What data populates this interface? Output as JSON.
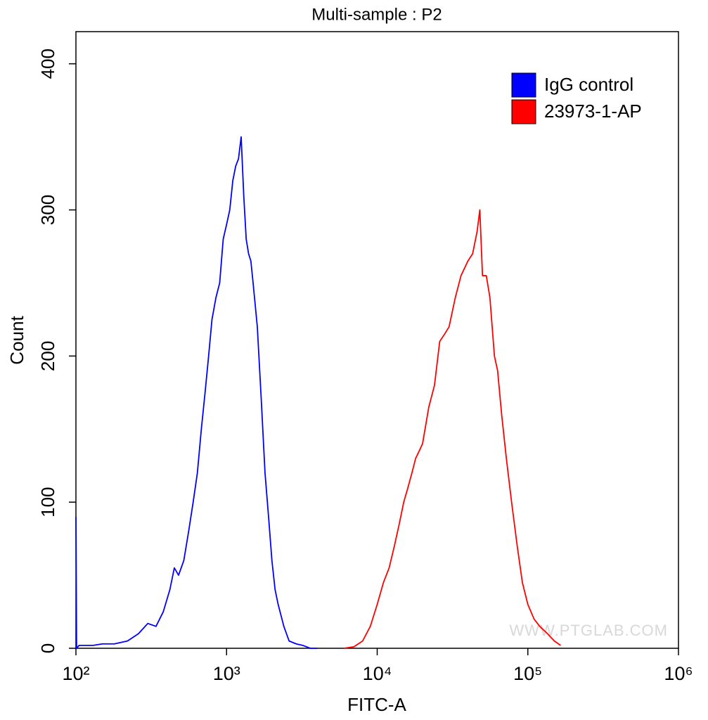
{
  "chart_data": {
    "type": "histogram-line",
    "title": "Multi-sample : P2",
    "x_label": "FITC-A",
    "y_label": "Count",
    "x_log": true,
    "xlim": [
      100,
      1000000
    ],
    "xticks": [
      {
        "value": 100,
        "label": "10²"
      },
      {
        "value": 1000,
        "label": "10³"
      },
      {
        "value": 10000,
        "label": "10⁴"
      },
      {
        "value": 100000,
        "label": "10⁵"
      },
      {
        "value": 1000000,
        "label": "10⁶"
      }
    ],
    "ylim": [
      0,
      422
    ],
    "yticks": [
      0,
      100,
      200,
      300,
      400
    ],
    "legend_position": "upper right",
    "watermark": "WWW.PTGLAB.COM",
    "series": [
      {
        "name": "IgG control",
        "color": "#0000ff",
        "x": [
          100,
          101,
          105,
          130,
          150,
          180,
          220,
          260,
          300,
          340,
          380,
          420,
          450,
          480,
          520,
          560,
          600,
          640,
          680,
          720,
          760,
          800,
          850,
          900,
          950,
          1000,
          1050,
          1100,
          1150,
          1200,
          1250,
          1300,
          1350,
          1400,
          1450,
          1500,
          1600,
          1700,
          1800,
          1900,
          2000,
          2100,
          2200,
          2400,
          2600,
          2900,
          3200,
          3600,
          4000
        ],
        "values": [
          90,
          0,
          2,
          2,
          3,
          3,
          5,
          10,
          17,
          15,
          25,
          40,
          55,
          50,
          60,
          80,
          100,
          120,
          150,
          175,
          200,
          225,
          240,
          250,
          280,
          290,
          300,
          320,
          330,
          335,
          350,
          310,
          280,
          270,
          265,
          250,
          220,
          170,
          120,
          90,
          60,
          40,
          30,
          15,
          5,
          3,
          2,
          0,
          0
        ]
      },
      {
        "name": "23973-1-AP",
        "color": "#ff0000",
        "x": [
          6000,
          7000,
          8000,
          9000,
          10000,
          11000,
          12000,
          13000,
          14000,
          15000,
          16000,
          17000,
          18000,
          19000,
          20000,
          22000,
          24000,
          26000,
          28000,
          30000,
          33000,
          36000,
          40000,
          43000,
          46000,
          48000,
          50000,
          53000,
          56000,
          60000,
          63000,
          67000,
          72000,
          78000,
          85000,
          92000,
          100000,
          110000,
          120000,
          135000,
          150000,
          165000
        ],
        "values": [
          0,
          1,
          5,
          15,
          30,
          45,
          55,
          70,
          85,
          100,
          110,
          120,
          130,
          135,
          140,
          165,
          180,
          210,
          215,
          220,
          240,
          255,
          265,
          270,
          285,
          300,
          255,
          255,
          240,
          200,
          190,
          160,
          130,
          100,
          70,
          45,
          30,
          20,
          15,
          10,
          5,
          2
        ]
      }
    ]
  }
}
